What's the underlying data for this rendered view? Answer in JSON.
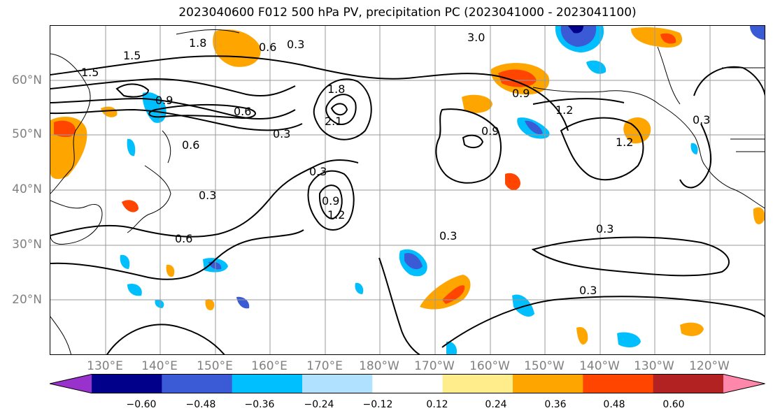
{
  "title": "2023040600 F012 500 hPa PV, precipitation PC (2023041000 - 2023041100)",
  "lat_labels": [
    "60°N",
    "50°N",
    "40°N",
    "30°N",
    "20°N"
  ],
  "lon_labels": [
    "130°E",
    "140°E",
    "150°E",
    "160°E",
    "170°E",
    "180°W",
    "170°W",
    "160°W",
    "150°W",
    "140°W",
    "130°W",
    "120°W"
  ],
  "colorbar": {
    "colors": [
      "#9932cc",
      "#00008b",
      "#3b5bd6",
      "#00bfff",
      "#b0e2ff",
      "#ffffff",
      "#ffec8b",
      "#ffa500",
      "#ff4500",
      "#b22222",
      "#ff88aa"
    ],
    "tick_labels": [
      "−0.60",
      "−0.48",
      "−0.36",
      "−0.24",
      "−0.12",
      "0.12",
      "0.24",
      "0.36",
      "0.48",
      "0.60"
    ]
  },
  "contour_labels": [
    "0.3",
    "0.3",
    "0.3",
    "0.3",
    "0.3",
    "0.3",
    "0.3",
    "0.3",
    "0.6",
    "0.6",
    "0.6",
    "0.6",
    "0.9",
    "0.9",
    "0.9",
    "0.9",
    "1.2",
    "1.2",
    "1.2",
    "1.5",
    "1.5",
    "1.8",
    "1.8",
    "2.1",
    "3.0"
  ]
}
